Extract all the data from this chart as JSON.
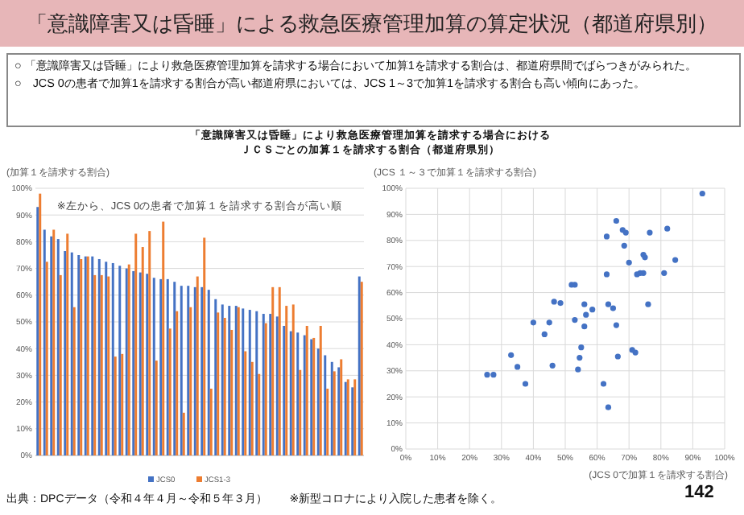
{
  "chart_data": [
    {
      "type": "bar",
      "title": "「意識障害又は昏睡」による救急医療管理加算の算定状況（都道府県別）",
      "subtitle": "「意識障害又は昏睡」により救急医療管理加算を請求する場合における",
      "ylabel": "(加算１を請求する割合)",
      "annotations": [
        "○ 「意識障害又は昏睡」により救急医療管理加算を請求する場合において加算1を請求する割合は、都道府県間でばらつきがみられた。",
        "○　JCS 0の患者で加算1を請求する割合が高い都道府県においては、JCS 1～3で加算1を請求する割合も高い傾向にあった。",
        "※左から、JCS 0の患者で加算１を請求する割合が高い順",
        "出典：DPCデータ（令和４年４月～令和５年３月）　　※新型コロナにより入院した患者を除く。",
        "142",
        "ＪＣＳごとの加算１を請求する割合（都道府県別）"
      ],
      "categories": [
        null,
        null,
        null,
        null,
        null,
        null,
        null,
        null,
        null,
        null,
        null,
        null,
        null,
        null,
        null,
        null,
        null,
        null,
        null,
        null,
        null,
        null,
        null,
        null,
        null,
        null,
        null,
        null,
        null,
        null,
        null,
        null,
        null,
        null,
        null,
        null,
        null,
        null,
        null,
        null,
        null,
        null,
        null,
        null,
        null,
        null,
        null,
        null
      ],
      "series": [
        {
          "name": "JCS0",
          "color": "#4472c4",
          "values": [
            93,
            84.5,
            82,
            81,
            76.5,
            76,
            75,
            74.5,
            74.5,
            73.5,
            72.5,
            72,
            71,
            70,
            69,
            68.5,
            68,
            66.5,
            66,
            66,
            65,
            63.5,
            63.5,
            63,
            63,
            62,
            58.5,
            56.5,
            56,
            56,
            55,
            54.5,
            54,
            53,
            53,
            52,
            48.5,
            46.5,
            46,
            45,
            43.5,
            40,
            37.5,
            35,
            33,
            27.5,
            25.5,
            67
          ]
        },
        {
          "name": "JCS1-3",
          "color": "#ed7d31",
          "values": [
            98,
            72.5,
            84.5,
            67.5,
            83,
            55.5,
            73.5,
            74.5,
            67.5,
            67.5,
            67,
            37,
            38,
            71.5,
            83,
            78,
            84,
            35.5,
            87.5,
            47.5,
            54,
            16,
            55.5,
            67,
            81.5,
            25,
            53.5,
            51.5,
            47,
            55.5,
            39,
            35,
            30.5,
            49.5,
            63,
            63,
            56,
            56.5,
            32,
            48.5,
            44,
            48.5,
            25,
            31.5,
            36,
            28.5,
            28.5,
            65
          ]
        }
      ],
      "ylim": [
        0,
        100
      ],
      "yticks": [
        {
          "value": 0,
          "label": "0%"
        },
        {
          "value": 10,
          "label": "10%"
        },
        {
          "value": 20,
          "label": "20%"
        },
        {
          "value": 30,
          "label": "30%"
        },
        {
          "value": 40,
          "label": "40%"
        },
        {
          "value": 50,
          "label": "50%"
        },
        {
          "value": 60,
          "label": "60%"
        },
        {
          "value": 70,
          "label": "70%"
        },
        {
          "value": 80,
          "label": "80%"
        },
        {
          "value": 90,
          "label": "90%"
        },
        {
          "value": 100,
          "label": "100%"
        }
      ],
      "grid": "y",
      "legend": "bottom"
    },
    {
      "type": "scatter",
      "xlabel": "(JCS 0で加算１を請求する割合)",
      "ylabel": "(JCS １～３で加算１を請求する割合)",
      "series": [
        {
          "color": "#4472c4",
          "x": [
            93,
            84.5,
            82,
            81,
            76.5,
            76,
            75,
            74.5,
            74.5,
            73.5,
            72.5,
            72,
            71,
            70,
            69,
            68.5,
            68,
            66.5,
            66,
            66,
            65,
            63.5,
            63.5,
            63,
            63,
            62,
            58.5,
            56.5,
            56,
            56,
            55,
            54.5,
            54,
            53,
            53,
            52,
            48.5,
            46.5,
            46,
            45,
            43.5,
            40,
            37.5,
            35,
            33,
            27.5,
            25.5
          ],
          "values": [
            98,
            72.5,
            84.5,
            67.5,
            83,
            55.5,
            73.5,
            74.5,
            67.5,
            67.5,
            67,
            37,
            38,
            71.5,
            83,
            78,
            84,
            35.5,
            87.5,
            47.5,
            54,
            16,
            55.5,
            67,
            81.5,
            25,
            53.5,
            51.5,
            47,
            55.5,
            39,
            35,
            30.5,
            49.5,
            63,
            63,
            56,
            56.5,
            32,
            48.5,
            44,
            48.5,
            25,
            31.5,
            36,
            28.5,
            28.5
          ]
        }
      ],
      "xlim": [
        0,
        100
      ],
      "xticks": [
        {
          "value": 0,
          "label": "0%"
        },
        {
          "value": 10,
          "label": "10%"
        },
        {
          "value": 20,
          "label": "20%"
        },
        {
          "value": 30,
          "label": "30%"
        },
        {
          "value": 40,
          "label": "40%"
        },
        {
          "value": 50,
          "label": "50%"
        },
        {
          "value": 60,
          "label": "60%"
        },
        {
          "value": 70,
          "label": "70%"
        },
        {
          "value": 80,
          "label": "80%"
        },
        {
          "value": 90,
          "label": "90%"
        },
        {
          "value": 100,
          "label": "100%"
        }
      ],
      "ylim": [
        0,
        100
      ],
      "yticks": [
        {
          "value": 0,
          "label": "0%"
        },
        {
          "value": 10,
          "label": "10%"
        },
        {
          "value": 20,
          "label": "20%"
        },
        {
          "value": 30,
          "label": "30%"
        },
        {
          "value": 40,
          "label": "40%"
        },
        {
          "value": 50,
          "label": "50%"
        },
        {
          "value": 60,
          "label": "60%"
        },
        {
          "value": 70,
          "label": "70%"
        },
        {
          "value": 80,
          "label": "80%"
        },
        {
          "value": 90,
          "label": "90%"
        },
        {
          "value": 100,
          "label": "100%"
        }
      ],
      "grid": true,
      "marker": "circle"
    }
  ]
}
